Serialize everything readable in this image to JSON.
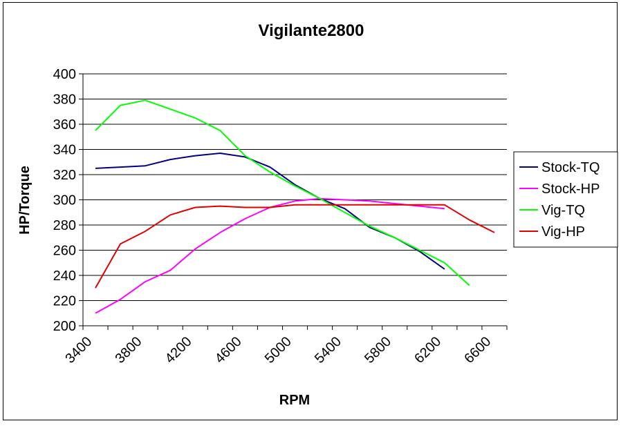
{
  "chart_data": {
    "type": "line",
    "title": "Vigilante2800",
    "xlabel": "RPM",
    "ylabel": "HP/Torque",
    "xlim": [
      3400,
      6800
    ],
    "ylim": [
      200,
      400
    ],
    "x_ticks": [
      "3400",
      "3800",
      "4200",
      "4600",
      "5000",
      "5400",
      "5800",
      "6200",
      "6600"
    ],
    "y_ticks": [
      "200",
      "220",
      "240",
      "260",
      "280",
      "300",
      "320",
      "340",
      "360",
      "380",
      "400"
    ],
    "grid": "horizontal",
    "legend_position": "right",
    "series": [
      {
        "name": "Stock-TQ",
        "color": "#000080",
        "x": [
          3500,
          3700,
          3900,
          4100,
          4300,
          4500,
          4700,
          4900,
          5100,
          5300,
          5500,
          5700,
          5900,
          6100,
          6300
        ],
        "y": [
          325,
          326,
          327,
          332,
          335,
          337,
          334,
          326,
          312,
          301,
          293,
          278,
          270,
          259,
          245
        ]
      },
      {
        "name": "Stock-HP",
        "color": "#ff00ff",
        "x": [
          3500,
          3700,
          3900,
          4100,
          4300,
          4500,
          4700,
          4900,
          5100,
          5300,
          5500,
          5700,
          5900,
          6100,
          6300
        ],
        "y": [
          210,
          221,
          235,
          244,
          261,
          274,
          285,
          294,
          299,
          301,
          300,
          299,
          297,
          295,
          293
        ]
      },
      {
        "name": "Vig-TQ",
        "color": "#00ff00",
        "x": [
          3500,
          3700,
          3900,
          4100,
          4300,
          4500,
          4700,
          4900,
          5100,
          5300,
          5500,
          5700,
          5900,
          6100,
          6300,
          6500
        ],
        "y": [
          355,
          375,
          379,
          372,
          365,
          355,
          335,
          322,
          311,
          301,
          290,
          279,
          270,
          260,
          250,
          232
        ]
      },
      {
        "name": "Vig-HP",
        "color": "#e00000",
        "x": [
          3500,
          3700,
          3900,
          4100,
          4300,
          4500,
          4700,
          4900,
          5100,
          5300,
          5500,
          5700,
          5900,
          6100,
          6300,
          6500,
          6700
        ],
        "y": [
          230,
          265,
          275,
          288,
          294,
          295,
          294,
          294,
          296,
          296,
          296,
          296,
          296,
          296,
          296,
          284,
          274
        ]
      }
    ]
  }
}
